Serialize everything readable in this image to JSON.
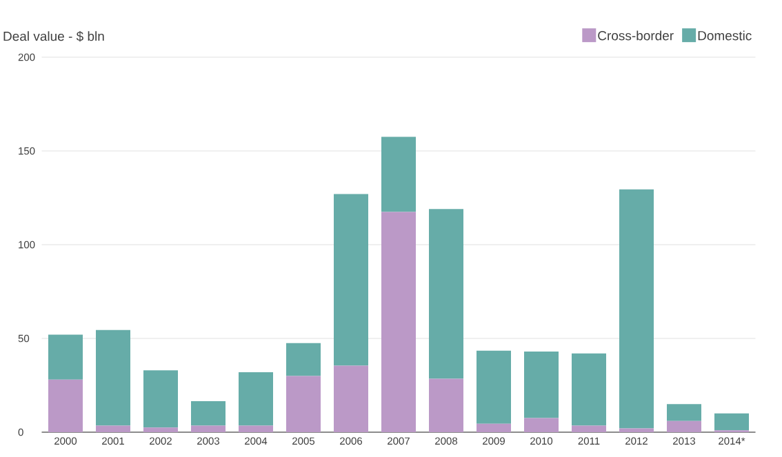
{
  "chart_data": {
    "type": "bar",
    "stacked": true,
    "ylabel": "Deal value - $ bln",
    "categories": [
      "2000",
      "2001",
      "2002",
      "2003",
      "2004",
      "2005",
      "2006",
      "2007",
      "2008",
      "2009",
      "2010",
      "2011",
      "2012",
      "2013",
      "2014*"
    ],
    "series": [
      {
        "name": "Cross-border",
        "color": "#bb99c7",
        "values": [
          28,
          3.5,
          2.5,
          3.5,
          3.5,
          30,
          35.5,
          117.5,
          28.5,
          4.5,
          7.5,
          3.5,
          2,
          6,
          1
        ]
      },
      {
        "name": "Domestic",
        "color": "#66aca8",
        "values": [
          24,
          51,
          30.5,
          13,
          28.5,
          17.5,
          91.5,
          40,
          90.5,
          39,
          35.5,
          38.5,
          127.5,
          9,
          9
        ]
      }
    ],
    "ylim": [
      0,
      200
    ],
    "yticks": [
      0,
      50,
      100,
      150,
      200
    ],
    "grid": "y",
    "legend": "top right"
  }
}
